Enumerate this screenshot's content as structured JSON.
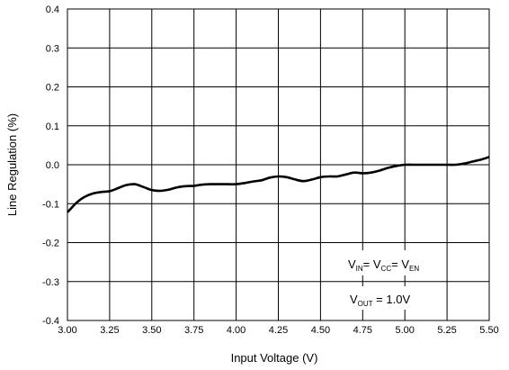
{
  "chart_data": {
    "type": "line",
    "title": "",
    "xlabel": "Input Voltage (V)",
    "ylabel": "Line Regulation (%)",
    "xlim": [
      3.0,
      5.5
    ],
    "ylim": [
      -0.4,
      0.4
    ],
    "x_ticks": [
      "3.00",
      "3.25",
      "3.50",
      "3.75",
      "4.00",
      "4.25",
      "4.50",
      "4.75",
      "5.00",
      "5.25",
      "5.50"
    ],
    "y_ticks": [
      "-0.4",
      "-0.3",
      "-0.2",
      "-0.1",
      "0.0",
      "0.1",
      "0.2",
      "0.3",
      "0.4"
    ],
    "grid": true,
    "legend": "none",
    "series": [
      {
        "color": "#000000",
        "x": [
          3.0,
          3.03,
          3.06,
          3.1,
          3.15,
          3.2,
          3.25,
          3.3,
          3.35,
          3.4,
          3.45,
          3.5,
          3.55,
          3.6,
          3.65,
          3.7,
          3.75,
          3.8,
          3.85,
          3.9,
          3.95,
          4.0,
          4.05,
          4.1,
          4.15,
          4.2,
          4.25,
          4.3,
          4.35,
          4.4,
          4.45,
          4.5,
          4.55,
          4.6,
          4.65,
          4.7,
          4.75,
          4.8,
          4.85,
          4.9,
          4.95,
          5.0,
          5.05,
          5.1,
          5.15,
          5.2,
          5.25,
          5.3,
          5.35,
          5.4,
          5.45,
          5.5
        ],
        "y": [
          -0.122,
          -0.108,
          -0.095,
          -0.083,
          -0.074,
          -0.07,
          -0.068,
          -0.06,
          -0.052,
          -0.05,
          -0.057,
          -0.065,
          -0.067,
          -0.064,
          -0.058,
          -0.055,
          -0.054,
          -0.051,
          -0.05,
          -0.05,
          -0.05,
          -0.05,
          -0.047,
          -0.043,
          -0.04,
          -0.033,
          -0.03,
          -0.032,
          -0.038,
          -0.042,
          -0.038,
          -0.032,
          -0.03,
          -0.03,
          -0.025,
          -0.02,
          -0.022,
          -0.02,
          -0.015,
          -0.008,
          -0.003,
          0.0,
          0.0,
          0.0,
          0.0,
          0.0,
          0.0,
          0.0,
          0.003,
          0.008,
          0.013,
          0.02
        ]
      }
    ],
    "annotations": {
      "vin_equation": {
        "v1": "V",
        "s1": "IN",
        "v2": "= V",
        "s2": "CC",
        "v3": "= V",
        "s3": "EN"
      },
      "vout_equation": {
        "v": "V",
        "s": "OUT",
        "rest": " = 1.0V"
      }
    }
  }
}
